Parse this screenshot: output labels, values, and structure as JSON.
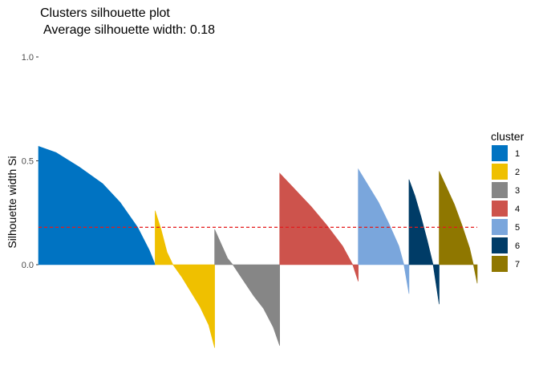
{
  "chart_data": {
    "type": "bar",
    "title": "Clusters silhouette plot",
    "subtitle": "Average silhouette width: 0.18",
    "xlabel": "",
    "ylabel": "Silhouette width Si",
    "ylim": [
      -0.41,
      1.0
    ],
    "y_ticks": [
      {
        "value": 0.0,
        "label": "0.0"
      },
      {
        "value": 0.5,
        "label": "0.5"
      },
      {
        "value": 1.0,
        "label": "1.0"
      }
    ],
    "grid": false,
    "reference_line": {
      "value": 0.18,
      "color": "#e41a1c",
      "style": "dashed"
    },
    "legend": {
      "title": "cluster",
      "placement": "right"
    },
    "clusters": [
      {
        "name": "1",
        "color": "#0073C2",
        "size": 147,
        "sorted_widths": [
          [
            0,
            0.57
          ],
          [
            0.15,
            0.54
          ],
          [
            0.35,
            0.47
          ],
          [
            0.55,
            0.39
          ],
          [
            0.7,
            0.3
          ],
          [
            0.85,
            0.18
          ],
          [
            0.95,
            0.07
          ],
          [
            1,
            0.0
          ]
        ]
      },
      {
        "name": "2",
        "color": "#EFC000",
        "size": 75,
        "sorted_widths": [
          [
            0,
            0.26
          ],
          [
            0.1,
            0.17
          ],
          [
            0.2,
            0.06
          ],
          [
            0.3,
            0.0
          ],
          [
            0.45,
            -0.06
          ],
          [
            0.6,
            -0.13
          ],
          [
            0.75,
            -0.2
          ],
          [
            0.9,
            -0.29
          ],
          [
            1,
            -0.4
          ]
        ]
      },
      {
        "name": "3",
        "color": "#868686",
        "size": 82,
        "sorted_widths": [
          [
            0,
            0.17
          ],
          [
            0.1,
            0.1
          ],
          [
            0.2,
            0.03
          ],
          [
            0.28,
            0.0
          ],
          [
            0.45,
            -0.08
          ],
          [
            0.6,
            -0.15
          ],
          [
            0.75,
            -0.21
          ],
          [
            0.9,
            -0.3
          ],
          [
            1,
            -0.39
          ]
        ]
      },
      {
        "name": "4",
        "color": "#CD534C",
        "size": 99,
        "sorted_widths": [
          [
            0,
            0.44
          ],
          [
            0.2,
            0.36
          ],
          [
            0.4,
            0.28
          ],
          [
            0.6,
            0.19
          ],
          [
            0.8,
            0.09
          ],
          [
            0.93,
            0.0
          ],
          [
            1,
            -0.08
          ]
        ]
      },
      {
        "name": "5",
        "color": "#7AA6DC",
        "size": 64,
        "sorted_widths": [
          [
            0,
            0.46
          ],
          [
            0.2,
            0.38
          ],
          [
            0.4,
            0.3
          ],
          [
            0.6,
            0.2
          ],
          [
            0.8,
            0.09
          ],
          [
            0.9,
            0.0
          ],
          [
            1,
            -0.14
          ]
        ]
      },
      {
        "name": "6",
        "color": "#003C67",
        "size": 38,
        "sorted_widths": [
          [
            0,
            0.41
          ],
          [
            0.2,
            0.33
          ],
          [
            0.4,
            0.23
          ],
          [
            0.6,
            0.12
          ],
          [
            0.8,
            0.0
          ],
          [
            1,
            -0.19
          ]
        ]
      },
      {
        "name": "7",
        "color": "#8F7700",
        "size": 48,
        "sorted_widths": [
          [
            0,
            0.45
          ],
          [
            0.2,
            0.37
          ],
          [
            0.4,
            0.29
          ],
          [
            0.6,
            0.19
          ],
          [
            0.8,
            0.08
          ],
          [
            0.9,
            0.0
          ],
          [
            1,
            -0.09
          ]
        ]
      }
    ]
  }
}
